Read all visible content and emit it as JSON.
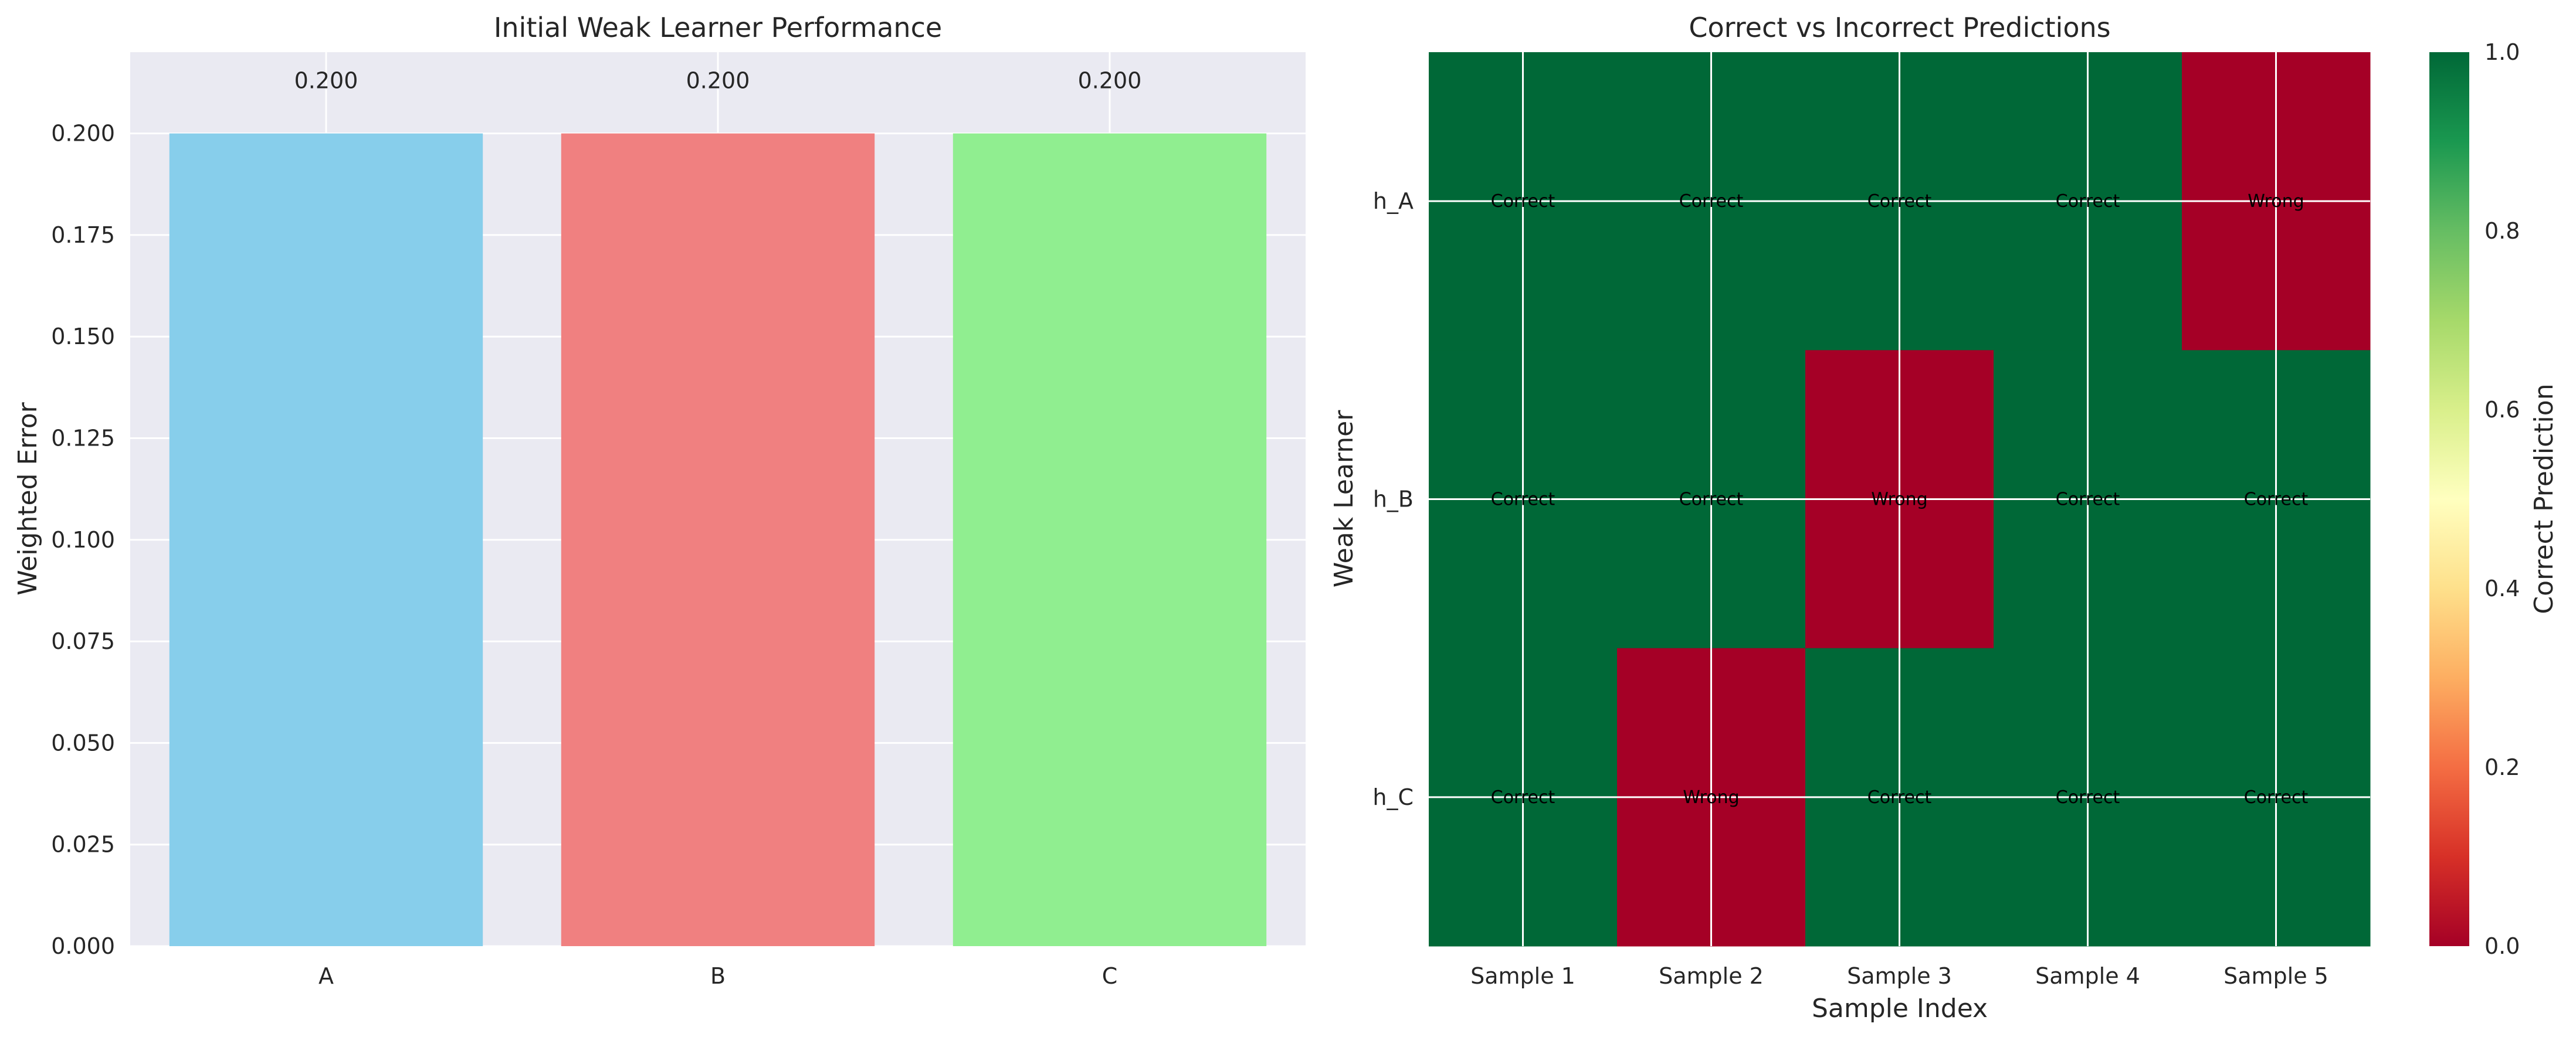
{
  "chart_data": [
    {
      "type": "bar",
      "title": "Initial Weak Learner Performance",
      "xlabel": "",
      "ylabel": "Weighted Error",
      "categories": [
        "A",
        "B",
        "C"
      ],
      "values": [
        0.2,
        0.2,
        0.2
      ],
      "value_labels": [
        "0.200",
        "0.200",
        "0.200"
      ],
      "colors": [
        "#87ceeb",
        "#f08080",
        "#90ee90"
      ],
      "ylim": [
        0,
        0.22
      ],
      "yticks": [
        0,
        0.025,
        0.05,
        0.075,
        0.1,
        0.125,
        0.15,
        0.175,
        0.2
      ],
      "ytick_labels": [
        "0.000",
        "0.025",
        "0.050",
        "0.075",
        "0.100",
        "0.125",
        "0.150",
        "0.175",
        "0.200"
      ],
      "grid": true,
      "background": "#eaeaf2"
    },
    {
      "type": "heatmap",
      "title": "Correct vs Incorrect Predictions",
      "xlabel": "Sample Index",
      "ylabel": "Weak Learner",
      "x_categories": [
        "Sample 1",
        "Sample 2",
        "Sample 3",
        "Sample 4",
        "Sample 5"
      ],
      "y_categories": [
        "h_A",
        "h_B",
        "h_C"
      ],
      "values": [
        [
          1,
          1,
          1,
          1,
          0
        ],
        [
          1,
          1,
          0,
          1,
          1
        ],
        [
          1,
          0,
          1,
          1,
          1
        ]
      ],
      "cell_labels": [
        [
          "Correct",
          "Correct",
          "Correct",
          "Correct",
          "Wrong"
        ],
        [
          "Correct",
          "Correct",
          "Wrong",
          "Correct",
          "Correct"
        ],
        [
          "Correct",
          "Wrong",
          "Correct",
          "Correct",
          "Correct"
        ]
      ],
      "colormap": "RdYlGn",
      "colors": {
        "correct": "#006837",
        "wrong": "#a50026"
      },
      "colorbar": {
        "label": "Correct Prediction",
        "range": [
          0,
          1
        ],
        "ticks": [
          0,
          0.2,
          0.4,
          0.6,
          0.8,
          1.0
        ],
        "tick_labels": [
          "0.0",
          "0.2",
          "0.4",
          "0.6",
          "0.8",
          "1.0"
        ],
        "gradient": [
          "#a50026",
          "#d73027",
          "#f46d43",
          "#fdae61",
          "#fee08b",
          "#ffffbf",
          "#d9ef8b",
          "#a6d96a",
          "#66bd63",
          "#1a9850",
          "#006837"
        ]
      },
      "grid": true
    }
  ]
}
